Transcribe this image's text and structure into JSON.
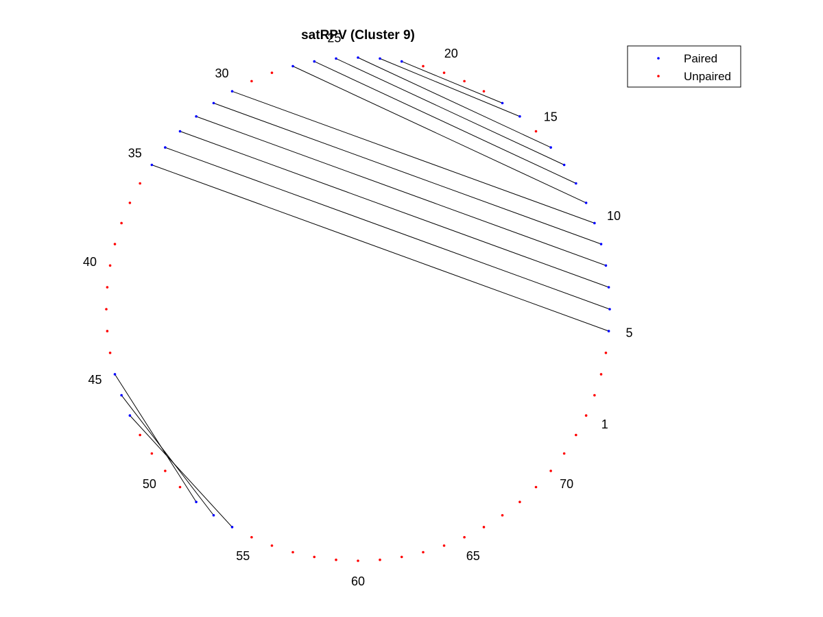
{
  "title": "satRPV (Cluster 9)",
  "legend": {
    "placement": "top-right",
    "items": [
      {
        "label": "Paired",
        "color": "#0000ff"
      },
      {
        "label": "Unpaired",
        "color": "#ff0000"
      }
    ]
  },
  "colors": {
    "paired": "#0000ff",
    "unpaired": "#ff0000",
    "link": "#000000"
  },
  "n_positions": 72,
  "index_labels": [
    "1",
    "5",
    "10",
    "15",
    "20",
    "25",
    "30",
    "35",
    "40",
    "45",
    "50",
    "55",
    "60",
    "65",
    "70"
  ],
  "pairs": [
    [
      5,
      35
    ],
    [
      6,
      34
    ],
    [
      7,
      33
    ],
    [
      8,
      32
    ],
    [
      9,
      31
    ],
    [
      10,
      30
    ],
    [
      11,
      27
    ],
    [
      12,
      26
    ],
    [
      13,
      25
    ],
    [
      14,
      24
    ],
    [
      16,
      23
    ],
    [
      17,
      22
    ],
    [
      45,
      52
    ],
    [
      46,
      53
    ],
    [
      47,
      54
    ]
  ]
}
